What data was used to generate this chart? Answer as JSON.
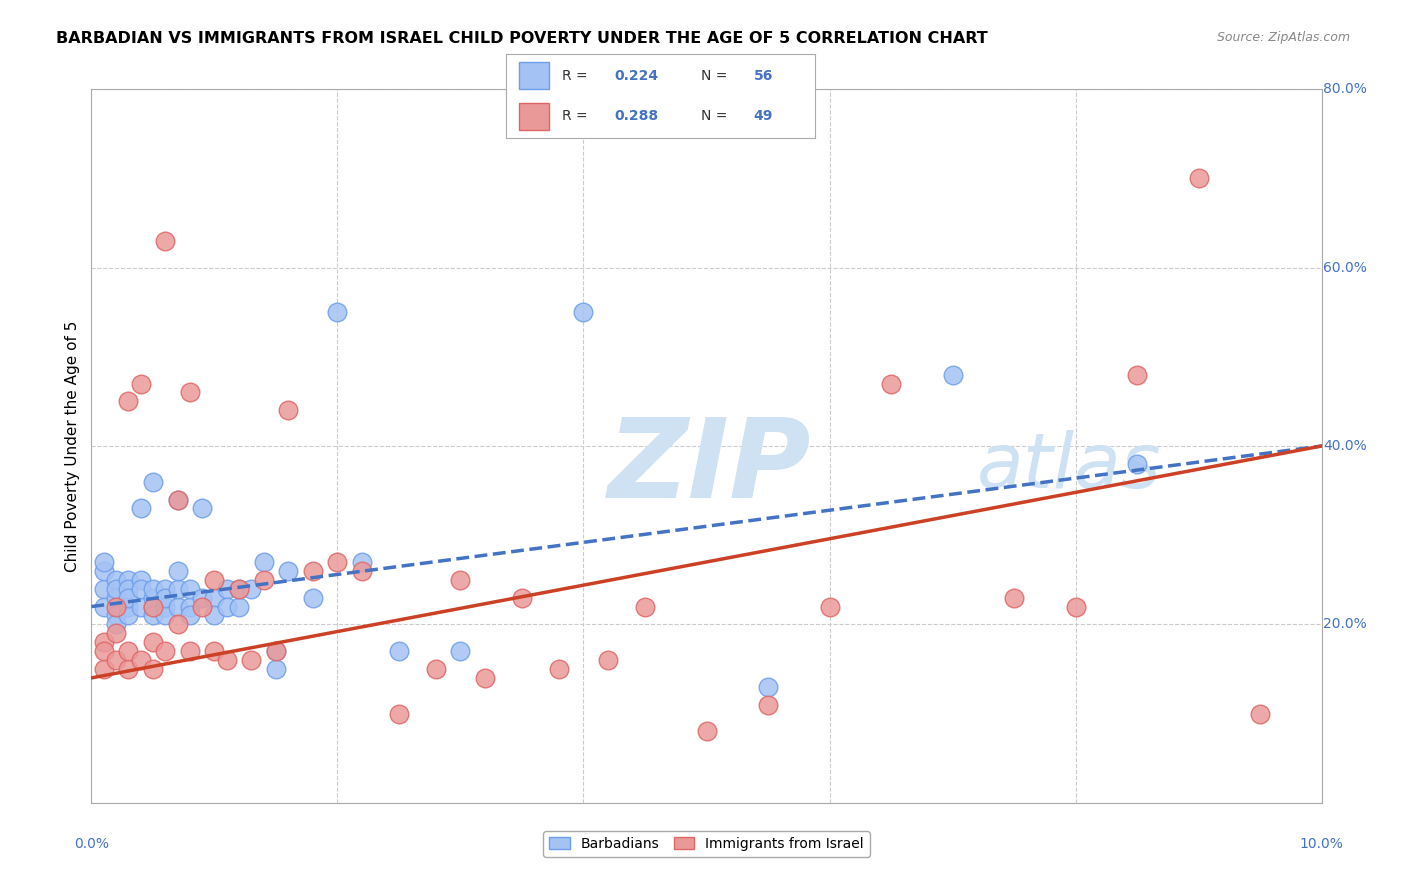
{
  "title": "BARBADIAN VS IMMIGRANTS FROM ISRAEL CHILD POVERTY UNDER THE AGE OF 5 CORRELATION CHART",
  "source": "Source: ZipAtlas.com",
  "ylabel": "Child Poverty Under the Age of 5",
  "watermark_zip": "ZIP",
  "watermark_atlas": "atlas",
  "legend_label1": "Barbadians",
  "legend_label2": "Immigrants from Israel",
  "blue_scatter_color": "#a4c2f4",
  "blue_edge_color": "#6d9eeb",
  "pink_scatter_color": "#ea9999",
  "pink_edge_color": "#e06666",
  "blue_line_color": "#4472c4",
  "pink_line_color": "#cc4125",
  "axis_label_color": "#4472c4",
  "watermark_color": "#cfe2f3",
  "R1": 0.224,
  "N1": 56,
  "R2": 0.288,
  "N2": 49,
  "xlim": [
    0.0,
    0.1
  ],
  "ylim": [
    0.0,
    0.8
  ],
  "x_ticks": [
    0.0,
    0.02,
    0.04,
    0.06,
    0.08,
    0.1
  ],
  "y_ticks": [
    0.0,
    0.2,
    0.4,
    0.6,
    0.8
  ],
  "x_tick_labels": [
    "0.0%",
    "",
    "",
    "",
    "",
    "10.0%"
  ],
  "y_tick_right_labels": [
    "",
    "20.0%",
    "40.0%",
    "60.0%",
    "80.0%"
  ],
  "barbadians_x": [
    0.001,
    0.001,
    0.001,
    0.001,
    0.002,
    0.002,
    0.002,
    0.002,
    0.002,
    0.003,
    0.003,
    0.003,
    0.003,
    0.003,
    0.004,
    0.004,
    0.004,
    0.004,
    0.005,
    0.005,
    0.005,
    0.005,
    0.005,
    0.006,
    0.006,
    0.006,
    0.006,
    0.007,
    0.007,
    0.007,
    0.007,
    0.008,
    0.008,
    0.008,
    0.009,
    0.009,
    0.01,
    0.01,
    0.011,
    0.011,
    0.012,
    0.012,
    0.013,
    0.014,
    0.015,
    0.015,
    0.016,
    0.018,
    0.02,
    0.022,
    0.025,
    0.03,
    0.04,
    0.055,
    0.07,
    0.085
  ],
  "barbadians_y": [
    0.24,
    0.26,
    0.22,
    0.27,
    0.25,
    0.23,
    0.21,
    0.24,
    0.2,
    0.25,
    0.22,
    0.24,
    0.21,
    0.23,
    0.25,
    0.22,
    0.24,
    0.33,
    0.23,
    0.22,
    0.24,
    0.21,
    0.36,
    0.22,
    0.24,
    0.21,
    0.23,
    0.22,
    0.24,
    0.26,
    0.34,
    0.22,
    0.24,
    0.21,
    0.23,
    0.33,
    0.23,
    0.21,
    0.24,
    0.22,
    0.22,
    0.24,
    0.24,
    0.27,
    0.17,
    0.15,
    0.26,
    0.23,
    0.55,
    0.27,
    0.17,
    0.17,
    0.55,
    0.13,
    0.48,
    0.38
  ],
  "israel_x": [
    0.001,
    0.001,
    0.001,
    0.002,
    0.002,
    0.002,
    0.003,
    0.003,
    0.003,
    0.004,
    0.004,
    0.005,
    0.005,
    0.005,
    0.006,
    0.006,
    0.007,
    0.007,
    0.008,
    0.008,
    0.009,
    0.01,
    0.01,
    0.011,
    0.012,
    0.013,
    0.014,
    0.015,
    0.016,
    0.018,
    0.02,
    0.022,
    0.025,
    0.028,
    0.03,
    0.032,
    0.035,
    0.038,
    0.042,
    0.045,
    0.05,
    0.055,
    0.06,
    0.065,
    0.075,
    0.08,
    0.085,
    0.09,
    0.095
  ],
  "israel_y": [
    0.18,
    0.15,
    0.17,
    0.16,
    0.19,
    0.22,
    0.15,
    0.17,
    0.45,
    0.16,
    0.47,
    0.15,
    0.18,
    0.22,
    0.17,
    0.63,
    0.2,
    0.34,
    0.17,
    0.46,
    0.22,
    0.17,
    0.25,
    0.16,
    0.24,
    0.16,
    0.25,
    0.17,
    0.44,
    0.26,
    0.27,
    0.26,
    0.1,
    0.15,
    0.25,
    0.14,
    0.23,
    0.15,
    0.16,
    0.22,
    0.08,
    0.11,
    0.22,
    0.47,
    0.23,
    0.22,
    0.48,
    0.7,
    0.1
  ],
  "blue_line_x0": 0.0,
  "blue_line_y0": 0.22,
  "blue_line_x1": 0.1,
  "blue_line_y1": 0.4,
  "pink_line_x0": 0.0,
  "pink_line_y0": 0.14,
  "pink_line_x1": 0.1,
  "pink_line_y1": 0.4
}
